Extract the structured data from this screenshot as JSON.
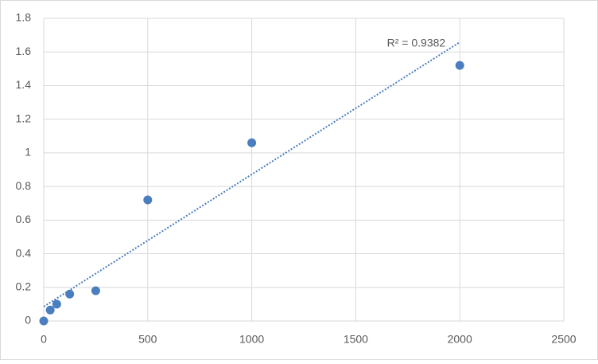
{
  "chart_data": {
    "type": "scatter",
    "x": [
      0,
      31.25,
      62.5,
      125,
      250,
      500,
      1000,
      2000
    ],
    "values": [
      0,
      0.065,
      0.1,
      0.16,
      0.18,
      0.72,
      1.06,
      1.52
    ],
    "color": "#4a7ebf",
    "xlim": [
      0,
      2500
    ],
    "xticks": [
      0,
      500,
      1000,
      1500,
      2000,
      2500
    ],
    "ylim": [
      0,
      1.8
    ],
    "yticks": [
      0,
      0.2,
      0.4,
      0.6,
      0.8,
      1,
      1.2,
      1.4,
      1.6,
      1.8
    ],
    "grid": true,
    "trendline": {
      "type": "linear",
      "color": "#4a7ebf",
      "annotation": "R² = 0.9382"
    }
  }
}
